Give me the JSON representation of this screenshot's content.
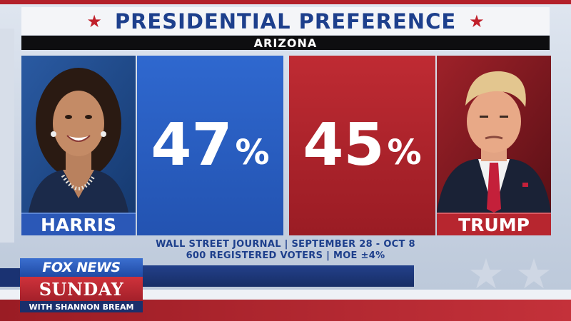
{
  "title": {
    "text": "PRESIDENTIAL PREFERENCE",
    "subtitle": "ARIZONA"
  },
  "candidates": [
    {
      "name": "HARRIS",
      "percent": "47",
      "percent_sign": "%",
      "color": "#2b58b7"
    },
    {
      "name": "TRUMP",
      "percent": "45",
      "percent_sign": "%",
      "color": "#b7262f"
    }
  ],
  "source": {
    "line1": "WALL STREET JOURNAL | SEPTEMBER 28 - OCT 8",
    "line2": "600 REGISTERED VOTERS | MOE ±4%"
  },
  "logo": {
    "network": "FOX NEWS",
    "show": "SUNDAY",
    "host": "WITH SHANNON BREAM"
  },
  "colors": {
    "title_blue": "#1d3f8c",
    "star_red": "#c0202b",
    "harris_blue": "#2f68cf",
    "trump_red": "#bf2b33"
  }
}
